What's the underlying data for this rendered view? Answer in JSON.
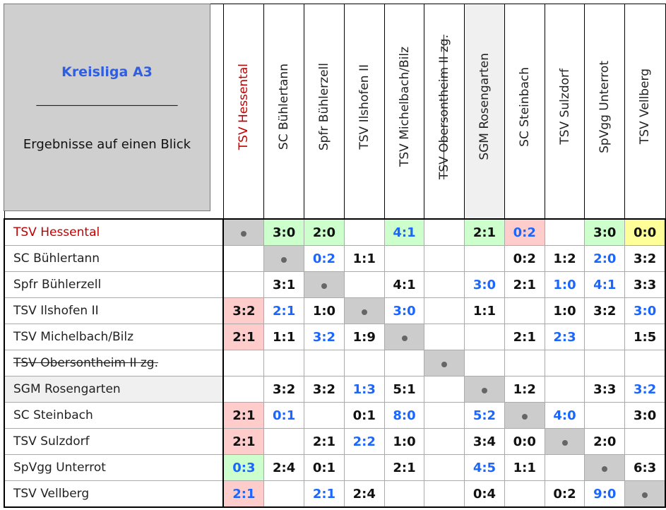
{
  "header": {
    "title": "Kreisliga A3",
    "separator": "_________________________",
    "subtitle": "Ergebnisse auf einen Blick"
  },
  "teams": [
    {
      "name": "TSV Hessental",
      "style": "red"
    },
    {
      "name": "SC Bühlertann"
    },
    {
      "name": "Spfr Bühlerzell"
    },
    {
      "name": "TSV Ilshofen II"
    },
    {
      "name": "TSV Michelbach/Bilz"
    },
    {
      "name": "TSV Obersontheim II zg.",
      "style": "strike"
    },
    {
      "name": "SGM Rosengarten",
      "style": "shade"
    },
    {
      "name": "SC Steinbach"
    },
    {
      "name": "TSV Sulzdorf"
    },
    {
      "name": "SpVgg Unterrot"
    },
    {
      "name": "TSV Vellberg"
    }
  ],
  "colors": {
    "blue": "#1a66ff",
    "win": "#ccffcc",
    "loss": "#ffcccc",
    "draw": "#ffff99",
    "self": "#cccccc"
  },
  "results": [
    [
      [
        "d"
      ],
      [
        "3:0",
        "k",
        "g"
      ],
      [
        "2:0",
        "k",
        "g"
      ],
      [
        ""
      ],
      [
        "4:1",
        "b",
        "g"
      ],
      [
        ""
      ],
      [
        "2:1",
        "k",
        "g"
      ],
      [
        "0:2",
        "b",
        "r"
      ],
      [
        ""
      ],
      [
        "3:0",
        "k",
        "g"
      ],
      [
        "0:0",
        "k",
        "y"
      ]
    ],
    [
      [
        ""
      ],
      [
        "d"
      ],
      [
        "0:2",
        "b"
      ],
      [
        "1:1",
        "k"
      ],
      [
        ""
      ],
      [
        ""
      ],
      [
        ""
      ],
      [
        "0:2",
        "k"
      ],
      [
        "1:2",
        "k"
      ],
      [
        "2:0",
        "b"
      ],
      [
        "3:2",
        "k"
      ]
    ],
    [
      [
        ""
      ],
      [
        "3:1",
        "k"
      ],
      [
        "d"
      ],
      [
        ""
      ],
      [
        "4:1",
        "k"
      ],
      [
        ""
      ],
      [
        "3:0",
        "b"
      ],
      [
        "2:1",
        "k"
      ],
      [
        "1:0",
        "b"
      ],
      [
        "4:1",
        "b"
      ],
      [
        "3:3",
        "k"
      ]
    ],
    [
      [
        "3:2",
        "k",
        "r"
      ],
      [
        "2:1",
        "b"
      ],
      [
        "1:0",
        "k"
      ],
      [
        "d"
      ],
      [
        "3:0",
        "b"
      ],
      [
        ""
      ],
      [
        "1:1",
        "k"
      ],
      [
        ""
      ],
      [
        "1:0",
        "k"
      ],
      [
        "3:2",
        "k"
      ],
      [
        "3:0",
        "b"
      ]
    ],
    [
      [
        "2:1",
        "k",
        "r"
      ],
      [
        "1:1",
        "k"
      ],
      [
        "3:2",
        "b"
      ],
      [
        "1:9",
        "k"
      ],
      [
        "d"
      ],
      [
        ""
      ],
      [
        ""
      ],
      [
        "2:1",
        "k"
      ],
      [
        "2:3",
        "b"
      ],
      [
        ""
      ],
      [
        "1:5",
        "k"
      ]
    ],
    [
      [
        ""
      ],
      [
        ""
      ],
      [
        ""
      ],
      [
        ""
      ],
      [
        ""
      ],
      [
        "d"
      ],
      [
        ""
      ],
      [
        ""
      ],
      [
        ""
      ],
      [
        ""
      ],
      [
        ""
      ]
    ],
    [
      [
        ""
      ],
      [
        "3:2",
        "k"
      ],
      [
        "3:2",
        "k"
      ],
      [
        "1:3",
        "b"
      ],
      [
        "5:1",
        "k"
      ],
      [
        ""
      ],
      [
        "d"
      ],
      [
        "1:2",
        "k"
      ],
      [
        ""
      ],
      [
        "3:3",
        "k"
      ],
      [
        "3:2",
        "b"
      ]
    ],
    [
      [
        "2:1",
        "k",
        "r"
      ],
      [
        "0:1",
        "b"
      ],
      [
        ""
      ],
      [
        "0:1",
        "k"
      ],
      [
        "8:0",
        "b"
      ],
      [
        ""
      ],
      [
        "5:2",
        "b"
      ],
      [
        "d"
      ],
      [
        "4:0",
        "b"
      ],
      [
        ""
      ],
      [
        "3:0",
        "k"
      ]
    ],
    [
      [
        "2:1",
        "k",
        "r"
      ],
      [
        ""
      ],
      [
        "2:1",
        "k"
      ],
      [
        "2:2",
        "b"
      ],
      [
        "1:0",
        "k"
      ],
      [
        ""
      ],
      [
        "3:4",
        "k"
      ],
      [
        "0:0",
        "k"
      ],
      [
        "d"
      ],
      [
        "2:0",
        "k"
      ],
      [
        ""
      ]
    ],
    [
      [
        "0:3",
        "b",
        "g"
      ],
      [
        "2:4",
        "k"
      ],
      [
        "0:1",
        "k"
      ],
      [
        ""
      ],
      [
        "2:1",
        "k"
      ],
      [
        ""
      ],
      [
        "4:5",
        "b"
      ],
      [
        "1:1",
        "k"
      ],
      [
        ""
      ],
      [
        "d"
      ],
      [
        "6:3",
        "k"
      ]
    ],
    [
      [
        "2:1",
        "b",
        "r"
      ],
      [
        ""
      ],
      [
        "2:1",
        "b"
      ],
      [
        "2:4",
        "k"
      ],
      [
        ""
      ],
      [
        ""
      ],
      [
        "0:4",
        "k"
      ],
      [
        ""
      ],
      [
        "0:2",
        "k"
      ],
      [
        "9:0",
        "b"
      ],
      [
        "d"
      ]
    ]
  ]
}
